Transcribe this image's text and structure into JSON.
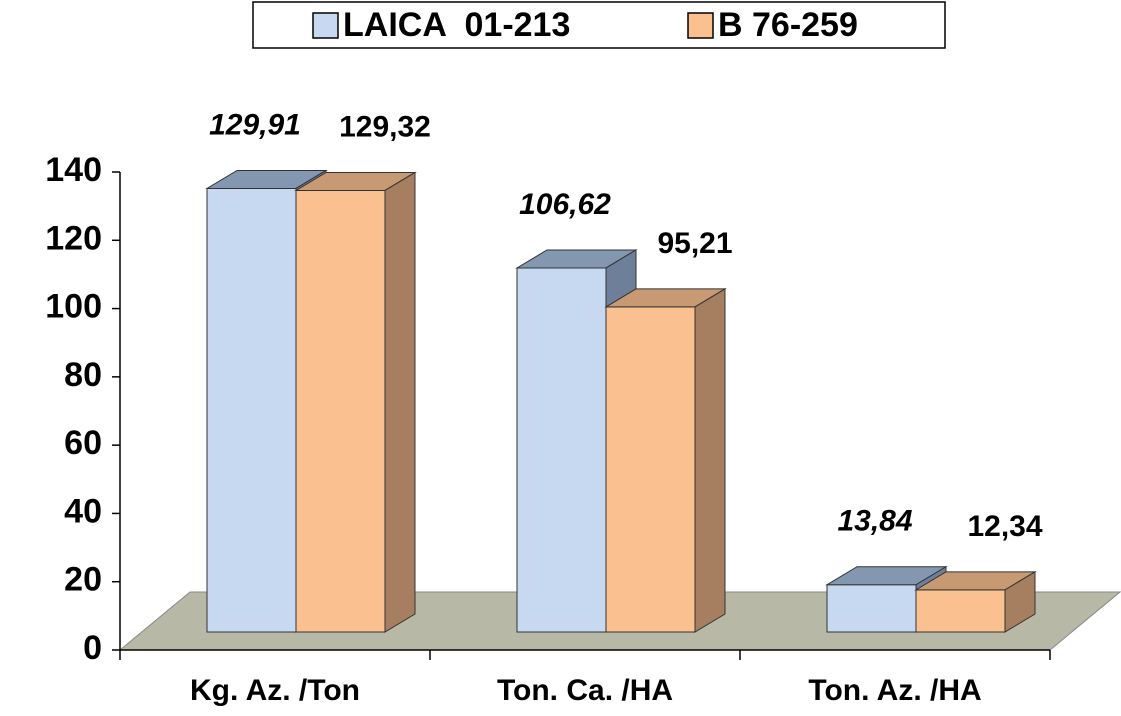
{
  "chart_data": {
    "type": "bar3d",
    "categories": [
      "Kg. Az. /Ton",
      "Ton. Ca. /HA",
      "Ton. Az. /HA"
    ],
    "series": [
      {
        "name": "LAICA  01-213",
        "color": "#c6d9f1",
        "values": [
          129.91,
          106.62,
          13.84
        ],
        "value_labels": [
          "129,91",
          "106,62",
          "13,84"
        ]
      },
      {
        "name": "B 76-259",
        "color": "#fac090",
        "values": [
          129.32,
          95.21,
          12.34
        ],
        "value_labels": [
          "129,32",
          "95,21",
          "12,34"
        ]
      }
    ],
    "ylim": [
      0,
      140
    ],
    "yticks": [
      0,
      20,
      40,
      60,
      80,
      100,
      120,
      140
    ],
    "legend": "top"
  }
}
